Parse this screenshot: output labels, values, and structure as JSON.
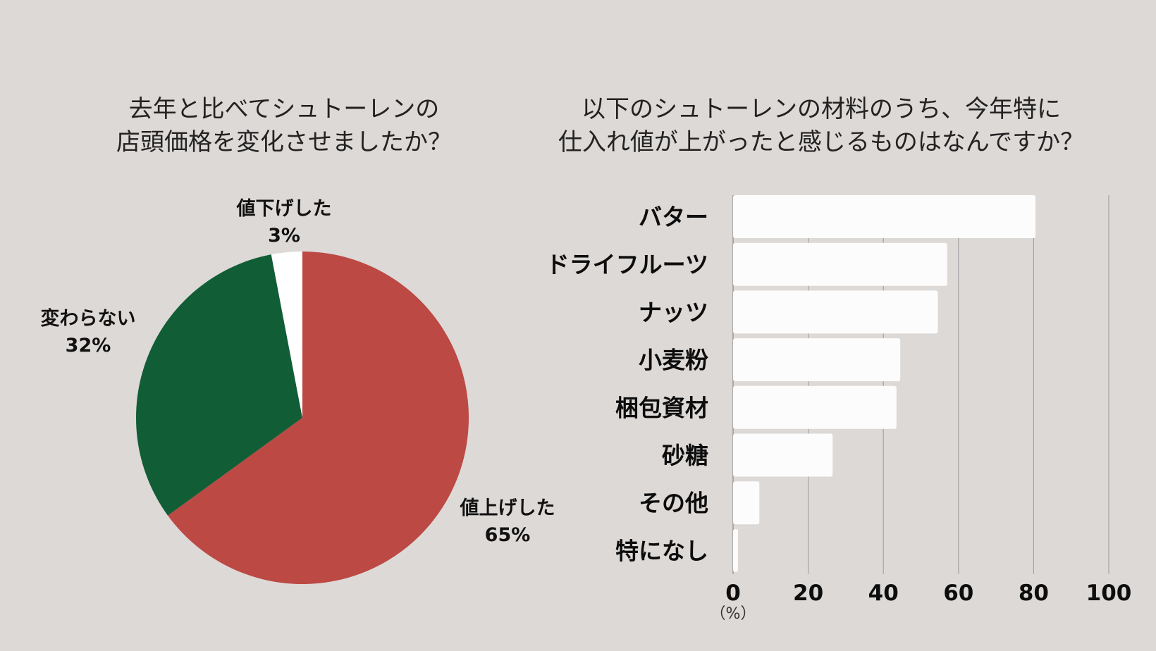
{
  "colors": {
    "background": "#ddd9d7",
    "pie_raised": "#bc4944",
    "pie_unchanged": "#115d35",
    "pie_lowered": "#ffffff",
    "bar_fill": "#fcfcfc",
    "grid": "#999999"
  },
  "chart_data": [
    {
      "type": "pie",
      "title_lines": [
        "去年と比べてシュトーレンの",
        "店頭価格を変化させましたか？"
      ],
      "slices": [
        {
          "label": "値上げした",
          "display": "65%",
          "value": 65,
          "color_key": "pie_raised"
        },
        {
          "label": "変わらない",
          "display": "32%",
          "value": 32,
          "color_key": "pie_unchanged"
        },
        {
          "label": "値下げした",
          "display": "3%",
          "value": 3,
          "color_key": "pie_lowered"
        }
      ],
      "start": "12 o'clock",
      "direction": "clockwise"
    },
    {
      "type": "bar",
      "orientation": "horizontal",
      "title_lines": [
        "以下のシュトーレンの材料のうち、今年特に",
        "仕入れ値が上がったと感じるものはなんですか？"
      ],
      "categories": [
        "バター",
        "ドライフルーツ",
        "ナッツ",
        "小麦粉",
        "梱包資材",
        "砂糖",
        "その他",
        "特になし"
      ],
      "values": [
        80.5,
        57,
        54.5,
        44.5,
        43.5,
        26.5,
        7,
        1.3
      ],
      "xlim": [
        0,
        100
      ],
      "xticks": [
        "0",
        "20",
        "40",
        "60",
        "80",
        "100"
      ],
      "xunit": "（%）",
      "grid": true
    }
  ]
}
